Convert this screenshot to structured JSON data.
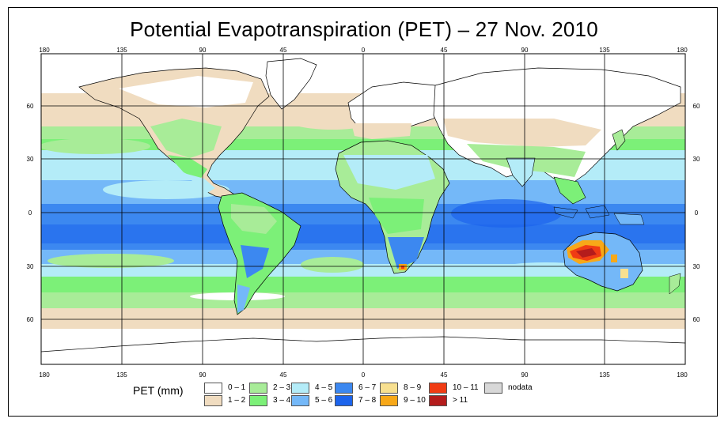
{
  "title": "Potential Evapotranspiration (PET) – 27 Nov. 2010",
  "axes": {
    "top_lon_labels": [
      "180",
      "135",
      "90",
      "45",
      "0",
      "45",
      "90",
      "135",
      "180"
    ],
    "bottom_lon_labels": [
      "180",
      "135",
      "90",
      "45",
      "0",
      "45",
      "90",
      "135",
      "180"
    ],
    "left_lat_labels": [
      "60",
      "30",
      "0",
      "30",
      "60"
    ],
    "right_lat_labels": [
      "60",
      "30",
      "0",
      "30",
      "60"
    ]
  },
  "colors": {
    "c0_1": "#ffffff",
    "c1_2": "#f0dcc0",
    "c2_3": "#a8ec98",
    "c3_4": "#7cf078",
    "c4_5": "#b4ecf8",
    "c5_6": "#74b8f8",
    "c6_7": "#3c88f0",
    "c7_8": "#1c64ec",
    "c8_9": "#f8e090",
    "c9_10": "#f8a818",
    "c10_11": "#f03c14",
    "c11": "#b41c1c",
    "nodata": "#d8d8d8"
  },
  "legend": {
    "title": "PET (mm)",
    "items": [
      {
        "label": "0 – 1",
        "color": "#ffffff"
      },
      {
        "label": "1 – 2",
        "color": "#f0dcc0"
      },
      {
        "label": "2 – 3",
        "color": "#a8ec98"
      },
      {
        "label": "3 – 4",
        "color": "#7cf078"
      },
      {
        "label": "4 – 5",
        "color": "#b4ecf8"
      },
      {
        "label": "5 – 6",
        "color": "#74b8f8"
      },
      {
        "label": "6 – 7",
        "color": "#3c88f0"
      },
      {
        "label": "7 – 8",
        "color": "#1c64ec"
      },
      {
        "label": "8 – 9",
        "color": "#f8e090"
      },
      {
        "label": "9 – 10",
        "color": "#f8a818"
      },
      {
        "label": "10 – 11",
        "color": "#f03c14"
      },
      {
        "label": "> 11",
        "color": "#b41c1c"
      },
      {
        "label": "nodata",
        "color": "#d8d8d8"
      }
    ]
  }
}
